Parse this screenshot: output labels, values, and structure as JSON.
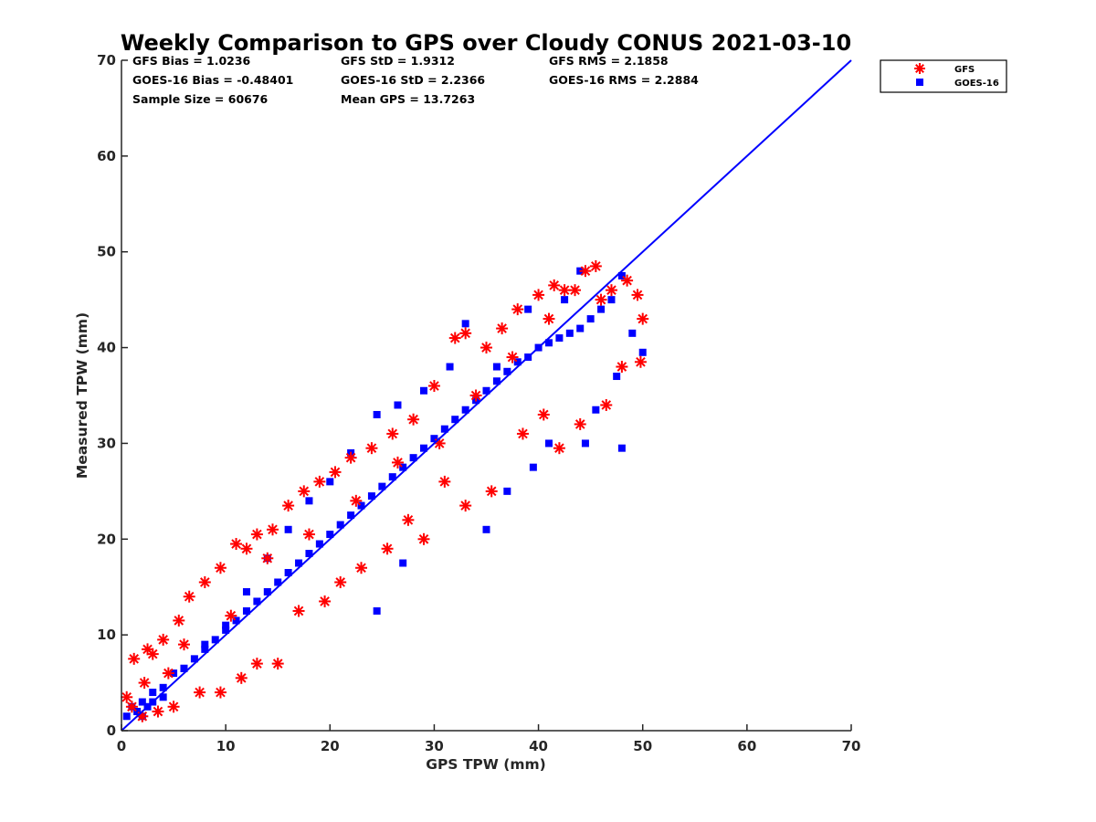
{
  "chart_data": {
    "type": "scatter",
    "title": "Weekly Comparison to GPS over Cloudy CONUS 2021-03-10",
    "xlabel": "GPS TPW (mm)",
    "ylabel": "Measured TPW (mm)",
    "xlim": [
      0,
      70
    ],
    "ylim": [
      0,
      70
    ],
    "xticks": [
      "0",
      "10",
      "20",
      "30",
      "40",
      "50",
      "60",
      "70"
    ],
    "yticks": [
      "0",
      "10",
      "20",
      "30",
      "40",
      "50",
      "60",
      "70"
    ],
    "grid": false,
    "legend_position": "outside-top-right",
    "stats": [
      [
        "GFS Bias = 1.0236",
        "GFS StD = 1.9312",
        "GFS RMS = 2.1858"
      ],
      [
        "GOES-16 Bias = -0.48401",
        "GOES-16 StD = 2.2366",
        "GOES-16 RMS = 2.2884"
      ],
      [
        "Sample Size = 60676",
        "Mean GPS = 13.7263",
        ""
      ]
    ],
    "reference_line": {
      "x": [
        0,
        70
      ],
      "y": [
        0,
        70
      ],
      "color": "#0000ff"
    },
    "series": [
      {
        "name": "GFS",
        "marker": "asterisk",
        "color": "#ff0000",
        "x": [
          0.5,
          1.2,
          2.5,
          3.0,
          4.0,
          5.5,
          6.5,
          8.0,
          9.5,
          11.0,
          12.0,
          13.0,
          14.5,
          16.0,
          17.5,
          19.0,
          20.5,
          22.0,
          24.0,
          26.0,
          28.0,
          30.0,
          32.0,
          33.0,
          35.0,
          36.5,
          38.0,
          40.0,
          41.5,
          42.5,
          43.5,
          44.5,
          45.5,
          46.0,
          47.0,
          48.5,
          49.5,
          50.0,
          49.8,
          48.0,
          46.5,
          44.0,
          42.0,
          40.5,
          38.5,
          35.5,
          33.0,
          31.0,
          29.0,
          27.5,
          25.5,
          23.0,
          21.0,
          19.5,
          17.0,
          15.0,
          13.0,
          11.5,
          9.5,
          7.5,
          5.0,
          3.5,
          2.0,
          1.0,
          2.2,
          4.5,
          6.0,
          10.5,
          14.0,
          18.0,
          22.5,
          26.5,
          30.5,
          34.0,
          37.5,
          41.0
        ],
        "y": [
          3.5,
          7.5,
          8.5,
          8.0,
          9.5,
          11.5,
          14.0,
          15.5,
          17.0,
          19.5,
          19.0,
          20.5,
          21.0,
          23.5,
          25.0,
          26.0,
          27.0,
          28.5,
          29.5,
          31.0,
          32.5,
          36.0,
          41.0,
          41.5,
          40.0,
          42.0,
          44.0,
          45.5,
          46.5,
          46.0,
          46.0,
          48.0,
          48.5,
          45.0,
          46.0,
          47.0,
          45.5,
          43.0,
          38.5,
          38.0,
          34.0,
          32.0,
          29.5,
          33.0,
          31.0,
          25.0,
          23.5,
          26.0,
          20.0,
          22.0,
          19.0,
          17.0,
          15.5,
          13.5,
          12.5,
          7.0,
          7.0,
          5.5,
          4.0,
          4.0,
          2.5,
          2.0,
          1.5,
          2.5,
          5.0,
          6.0,
          9.0,
          12.0,
          18.0,
          20.5,
          24.0,
          28.0,
          30.0,
          35.0,
          39.0,
          43.0
        ]
      },
      {
        "name": "GOES-16",
        "marker": "square",
        "color": "#0000ff",
        "x": [
          0.5,
          1.0,
          1.5,
          2.0,
          2.5,
          3.0,
          4.0,
          5.0,
          6.0,
          7.0,
          8.0,
          9.0,
          10.0,
          11.0,
          12.0,
          13.0,
          14.0,
          15.0,
          16.0,
          17.0,
          18.0,
          19.0,
          20.0,
          21.0,
          22.0,
          23.0,
          24.0,
          25.0,
          26.0,
          27.0,
          28.0,
          29.0,
          30.0,
          31.0,
          32.0,
          33.0,
          34.0,
          35.0,
          36.0,
          37.0,
          38.0,
          39.0,
          40.0,
          41.0,
          42.0,
          43.0,
          44.0,
          45.0,
          46.0,
          47.0,
          48.0,
          49.0,
          50.0,
          44.0,
          42.5,
          39.0,
          36.0,
          33.0,
          31.5,
          29.0,
          26.5,
          24.5,
          22.0,
          20.0,
          18.0,
          16.0,
          14.0,
          12.0,
          10.0,
          8.0,
          6.0,
          4.0,
          3.0,
          2.0,
          35.0,
          37.0,
          39.5,
          41.0,
          44.5,
          48.0,
          47.5,
          45.5,
          27.0,
          24.5
        ],
        "y": [
          1.5,
          2.5,
          2.0,
          3.0,
          2.5,
          4.0,
          4.5,
          6.0,
          6.5,
          7.5,
          8.5,
          9.5,
          10.5,
          11.5,
          12.5,
          13.5,
          14.5,
          15.5,
          16.5,
          17.5,
          18.5,
          19.5,
          20.5,
          21.5,
          22.5,
          23.5,
          24.5,
          25.5,
          26.5,
          27.5,
          28.5,
          29.5,
          30.5,
          31.5,
          32.5,
          33.5,
          34.5,
          35.5,
          36.5,
          37.5,
          38.5,
          39.0,
          40.0,
          40.5,
          41.0,
          41.5,
          42.0,
          43.0,
          44.0,
          45.0,
          47.5,
          41.5,
          39.5,
          48.0,
          45.0,
          44.0,
          38.0,
          42.5,
          38.0,
          35.5,
          34.0,
          33.0,
          29.0,
          26.0,
          24.0,
          21.0,
          18.0,
          14.5,
          11.0,
          9.0,
          6.5,
          3.5,
          3.0,
          1.5,
          21.0,
          25.0,
          27.5,
          30.0,
          30.0,
          29.5,
          37.0,
          33.5,
          17.5,
          12.5
        ]
      }
    ]
  }
}
